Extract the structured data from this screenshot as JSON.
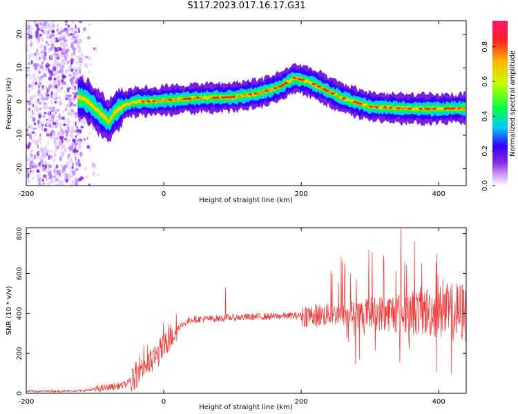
{
  "title": "S117.2023.017.16.17.G31",
  "chart_data": [
    {
      "type": "heatmap",
      "xlabel": "Height of straight line (km)",
      "ylabel": "Frequency (Hz)",
      "xlim": [
        -200,
        440
      ],
      "ylim": [
        -25,
        24
      ],
      "x_ticks": [
        -200,
        0,
        200,
        400
      ],
      "y_ticks": [
        -20,
        -10,
        0,
        10,
        20
      ],
      "colorbar": {
        "label": "Normalized spectral amplitude",
        "range": [
          0,
          0.95
        ],
        "ticks": [
          0.0,
          0.2,
          0.4,
          0.6,
          0.8
        ],
        "colors": [
          "#ffffff",
          "#d9b3ff",
          "#8a2be2",
          "#3300ff",
          "#00c8ff",
          "#00ff40",
          "#c8ff00",
          "#ffb000",
          "#ff2020",
          "#ff1a6e"
        ]
      },
      "ridge": {
        "x": [
          -120,
          -110,
          -100,
          -90,
          -80,
          -70,
          -60,
          -50,
          -40,
          -20,
          0,
          50,
          100,
          140,
          170,
          190,
          210,
          230,
          260,
          300,
          340,
          380,
          440
        ],
        "y": [
          1,
          0,
          -2,
          -4,
          -6,
          -3,
          -1.5,
          -0.5,
          0,
          0,
          0.3,
          1,
          1.3,
          2.5,
          4.5,
          7,
          6,
          4,
          1,
          -1.5,
          -2,
          -2.2,
          -2
        ]
      },
      "noise_region_x": [
        -200,
        -120
      ]
    },
    {
      "type": "line",
      "xlabel": "Height of straight line (km)",
      "ylabel": "SNR (10 * v/v)",
      "xlim": [
        -200,
        440
      ],
      "ylim": [
        0,
        830
      ],
      "x_ticks": [
        -200,
        0,
        200,
        400
      ],
      "y_ticks": [
        0,
        200,
        400,
        600,
        800
      ],
      "color": "#ee3333",
      "trend": {
        "x": [
          -200,
          -120,
          -90,
          -60,
          -45,
          -35,
          -20,
          0,
          20,
          40,
          80,
          100,
          150,
          200,
          250,
          300,
          340,
          380,
          440
        ],
        "y": [
          10,
          12,
          25,
          40,
          60,
          130,
          150,
          230,
          330,
          370,
          375,
          380,
          385,
          390,
          395,
          400,
          405,
          410,
          405
        ]
      },
      "spikes": [
        {
          "x": 90,
          "y": 530
        },
        {
          "x": 345,
          "y": 825
        },
        {
          "x": 365,
          "y": 760
        },
        {
          "x": 320,
          "y": 690
        },
        {
          "x": 260,
          "y": 660
        }
      ]
    }
  ]
}
